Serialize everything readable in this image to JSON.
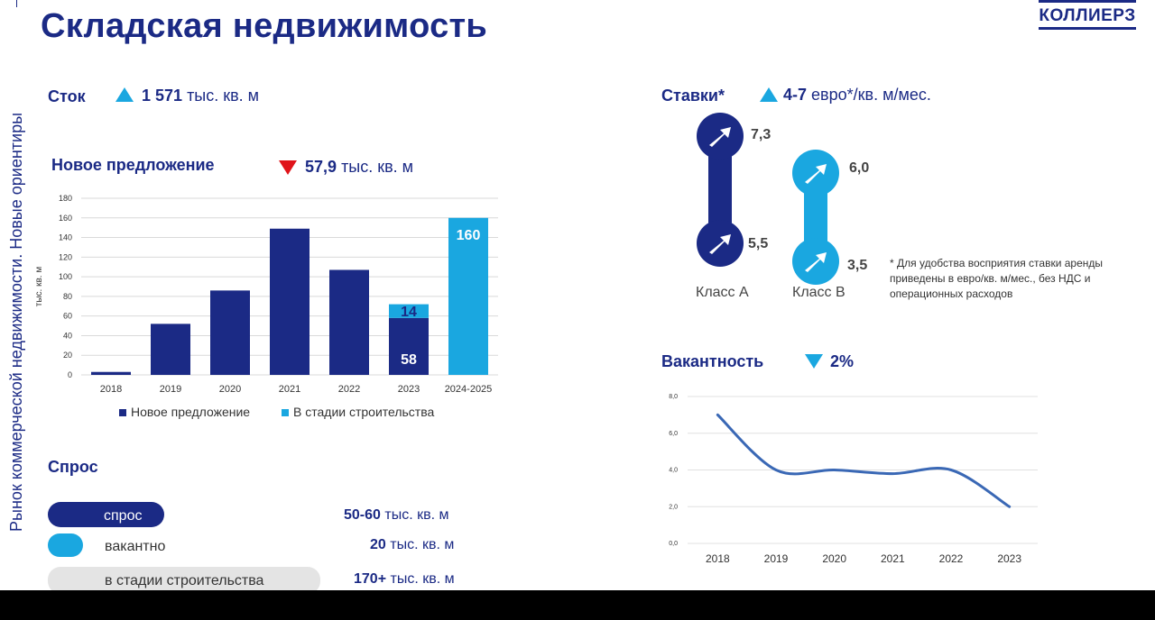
{
  "slide": {
    "title": "Складская недвижимость",
    "logo": "КОЛЛИЕРЗ",
    "side_caption": "Рынок коммерческой недвижимости. Новые ориентиры"
  },
  "stock": {
    "label": "Сток",
    "value": "1 571",
    "unit": "тыс. кв. м",
    "trend": "up"
  },
  "new_supply": {
    "label": "Новое предложение",
    "value": "57,9",
    "unit": "тыс. кв. м",
    "trend": "down"
  },
  "rates": {
    "label": "Ставки*",
    "value": "4-7",
    "unit": "евро*/кв. м/мес.",
    "trend": "up",
    "class_a": {
      "label": "Класс A",
      "high": "7,3",
      "low": "5,5"
    },
    "class_b": {
      "label": "Класс B",
      "high": "6,0",
      "low": "3,5"
    },
    "note": "*  Для удобства восприятия ставки аренды приведены в евро/кв. м/мес., без НДС и операционных расходов"
  },
  "vacancy": {
    "label": "Вакантность",
    "value": "2%",
    "trend": "down"
  },
  "demand": {
    "label": "Спрос",
    "rows": [
      {
        "label": "спрос",
        "value": "50-60",
        "unit": "тыс. кв. м"
      },
      {
        "label": "вакантно",
        "value": "20",
        "unit": "тыс. кв. м"
      },
      {
        "label": "в стадии строительства",
        "value": "170+",
        "unit": "тыс. кв. м"
      }
    ]
  },
  "colors": {
    "navy": "#1b2a85",
    "light_blue": "#1aa7e0",
    "red": "#e0141a",
    "line": "#3a68b5",
    "grey": "#e4e4e4"
  },
  "chart_data": [
    {
      "type": "bar",
      "stacked": true,
      "categories": [
        "2018",
        "2019",
        "2020",
        "2021",
        "2022",
        "2023",
        "2024-2025"
      ],
      "ylabel": "тыс. кв. м",
      "ylim": [
        0,
        180
      ],
      "yticks": [
        0,
        20,
        40,
        60,
        80,
        100,
        120,
        140,
        160,
        180
      ],
      "grid": true,
      "legend_position": "bottom",
      "series": [
        {
          "name": "Новое предложение",
          "color": "#1b2a85",
          "values": [
            3,
            52,
            86,
            149,
            107,
            58,
            0
          ]
        },
        {
          "name": "В стадии строительства",
          "color": "#1aa7e0",
          "values": [
            0,
            0,
            0,
            0,
            0,
            14,
            160
          ]
        }
      ],
      "data_labels": [
        {
          "category": "2023",
          "series": "В стадии строительства",
          "text": "14"
        },
        {
          "category": "2023",
          "series": "Новое предложение",
          "text": "58"
        },
        {
          "category": "2024-2025",
          "series": "В стадии строительства",
          "text": "160"
        }
      ]
    },
    {
      "type": "line",
      "x": [
        "2018",
        "2019",
        "2020",
        "2021",
        "2022",
        "2023"
      ],
      "y": [
        7.0,
        4.0,
        4.0,
        3.8,
        4.0,
        2.0
      ],
      "ylim": [
        0,
        8
      ],
      "yticks": [
        "0,0",
        "2,0",
        "4,0",
        "6,0",
        "8,0"
      ],
      "grid": true,
      "color": "#3a68b5"
    }
  ]
}
